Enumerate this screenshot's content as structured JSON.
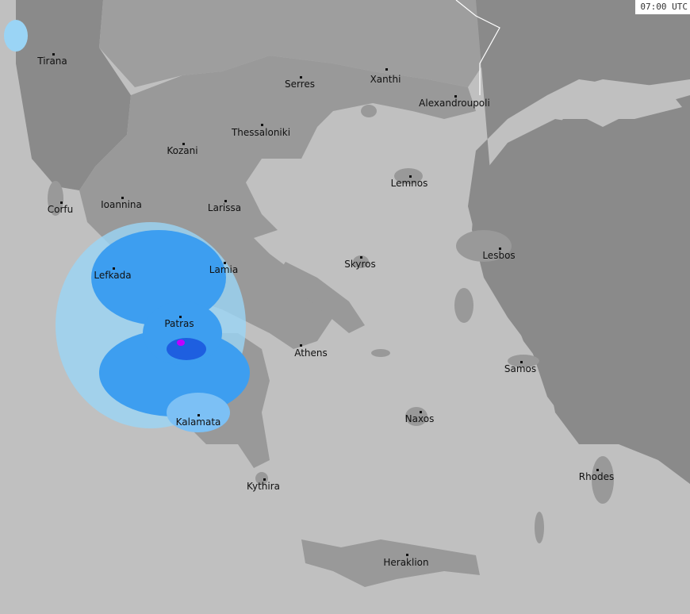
{
  "timestamp": "07:00 UTC",
  "colors": {
    "sea": "#c0c0c0",
    "greece_land": "#999999",
    "neighbor_dark": "#8a8a8a",
    "neighbor_mid": "#9e9e9e",
    "radar_light": "#9ad4f5",
    "radar_mid": "#3d9ef0",
    "radar_heavy": "#1e5fe0",
    "radar_extreme": "#c000ff"
  },
  "cities": [
    {
      "name": "Tirana"
    },
    {
      "name": "Serres"
    },
    {
      "name": "Xanthi"
    },
    {
      "name": "Alexandroupoli"
    },
    {
      "name": "Thessaloniki"
    },
    {
      "name": "Kozani"
    },
    {
      "name": "Lemnos"
    },
    {
      "name": "Corfu"
    },
    {
      "name": "Ioannina"
    },
    {
      "name": "Larissa"
    },
    {
      "name": "Lesbos"
    },
    {
      "name": "Lefkada"
    },
    {
      "name": "Lamia"
    },
    {
      "name": "Skyros"
    },
    {
      "name": "Patras"
    },
    {
      "name": "Athens"
    },
    {
      "name": "Samos"
    },
    {
      "name": "Naxos"
    },
    {
      "name": "Kalamata"
    },
    {
      "name": "Rhodes"
    },
    {
      "name": "Kythira"
    },
    {
      "name": "Heraklion"
    }
  ]
}
